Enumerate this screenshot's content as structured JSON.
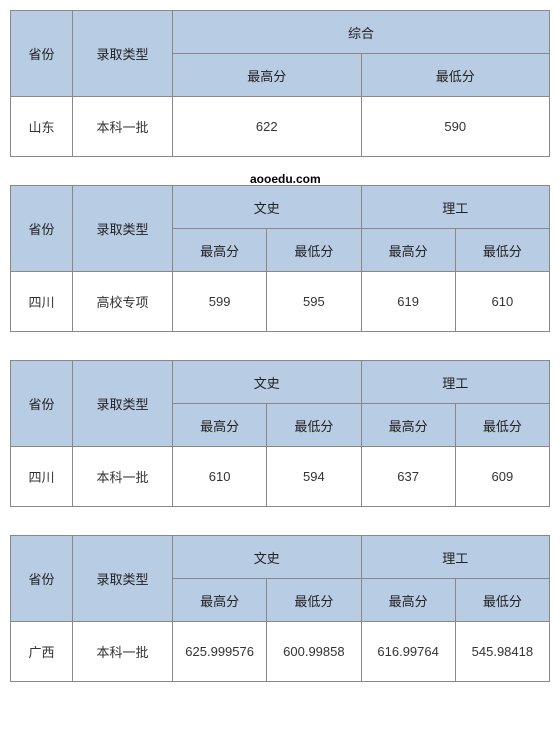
{
  "labels": {
    "province": "省份",
    "admit_type": "录取类型",
    "comprehensive": "综合",
    "liberal": "文史",
    "science": "理工",
    "max": "最高分",
    "min": "最低分"
  },
  "watermark": "aooedu.com",
  "tables": [
    {
      "mode": "single",
      "province": "山东",
      "admit_type": "本科一批",
      "group": "综合",
      "max": "622",
      "min": "590"
    },
    {
      "mode": "double",
      "province": "四川",
      "admit_type": "高校专项",
      "lib_max": "599",
      "lib_min": "595",
      "sci_max": "619",
      "sci_min": "610"
    },
    {
      "mode": "double",
      "province": "四川",
      "admit_type": "本科一批",
      "lib_max": "610",
      "lib_min": "594",
      "sci_max": "637",
      "sci_min": "609"
    },
    {
      "mode": "double",
      "province": "广西",
      "admit_type": "本科一批",
      "lib_max": "625.999576",
      "lib_min": "600.99858",
      "sci_max": "616.99764",
      "sci_min": "545.98418"
    }
  ]
}
